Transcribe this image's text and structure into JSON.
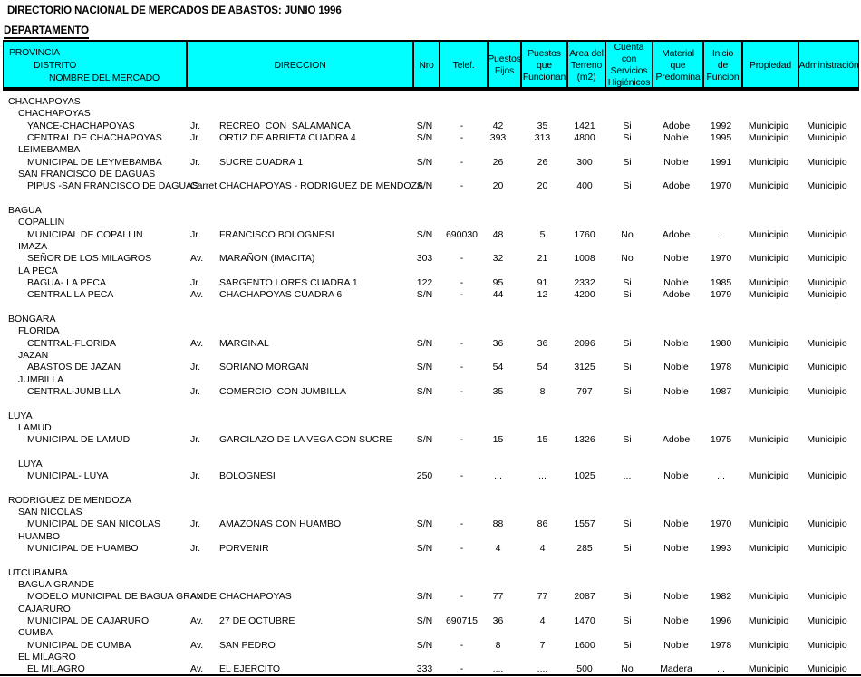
{
  "title": "DIRECTORIO NACIONAL DE MERCADOS DE ABASTOS: JUNIO 1996",
  "department_label": "DEPARTAMENTO",
  "table": {
    "headers": {
      "provincia": "PROVINCIA",
      "distrito": "DISTRITO",
      "nombre_mercado": "NOMBRE DEL MERCADO",
      "direccion": "DIRECCION",
      "nro": "Nro",
      "telef": "Telef.",
      "puestos_fijos": "Puestos\nFijos",
      "puestos_funcionan": "Puestos\nque\nFuncionan",
      "area_terreno": "Area del\nTerreno\n(m2)",
      "servicios": "Cuenta con\nServicios\nHigiénicos",
      "material": "Material\nque\nPredomina",
      "inicio": "Inicio\nde\nFuncion",
      "propiedad": "Propiedad",
      "administracion": "Administración"
    },
    "provinces": [
      {
        "name": "CHACHAPOYAS",
        "gap_after": true,
        "districts": [
          {
            "name": "CHACHAPOYAS",
            "gap_after": false,
            "markets": [
              {
                "nombre": "YANCE-CHACHAPOYAS",
                "via": "Jr.",
                "direccion": "RECREO  CON  SALAMANCA",
                "nro": "S/N",
                "telef": "-",
                "fijos": "42",
                "funcionan": "35",
                "area": "1421",
                "servicios": "Si",
                "material": "Adobe",
                "inicio": "1992",
                "propiedad": "Municipio",
                "administracion": "Municipio"
              },
              {
                "nombre": "CENTRAL DE CHACHAPOYAS",
                "via": "Jr.",
                "direccion": "ORTIZ DE ARRIETA CUADRA 4",
                "nro": "S/N",
                "telef": "-",
                "fijos": "393",
                "funcionan": "313",
                "area": "4800",
                "servicios": "Si",
                "material": "Noble",
                "inicio": "1995",
                "propiedad": "Municipio",
                "administracion": "Municipio"
              }
            ]
          },
          {
            "name": "LEIMEBAMBA",
            "gap_after": false,
            "markets": [
              {
                "nombre": "MUNICIPAL DE LEYMEBAMBA",
                "via": "Jr.",
                "direccion": "SUCRE CUADRA 1",
                "nro": "S/N",
                "telef": "-",
                "fijos": "26",
                "funcionan": "26",
                "area": "300",
                "servicios": "Si",
                "material": "Noble",
                "inicio": "1991",
                "propiedad": "Municipio",
                "administracion": "Municipio"
              }
            ]
          },
          {
            "name": "SAN FRANCISCO DE DAGUAS",
            "gap_after": false,
            "markets": [
              {
                "nombre": "PIPUS -SAN FRANCISCO DE DAGUAS",
                "via": "Carret.",
                "direccion": "CHACHAPOYAS - RODRIGUEZ DE MENDOZA",
                "nro": "S/N",
                "telef": "-",
                "fijos": "20",
                "funcionan": "20",
                "area": "400",
                "servicios": "Si",
                "material": "Adobe",
                "inicio": "1970",
                "propiedad": "Municipio",
                "administracion": "Municipio"
              }
            ]
          }
        ]
      },
      {
        "name": "BAGUA",
        "gap_after": true,
        "districts": [
          {
            "name": "COPALLIN",
            "gap_after": false,
            "markets": [
              {
                "nombre": "MUNICIPAL DE COPALLIN",
                "via": "Jr.",
                "direccion": "FRANCISCO BOLOGNESI",
                "nro": "S/N",
                "telef": "690030",
                "fijos": "48",
                "funcionan": "5",
                "area": "1760",
                "servicios": "No",
                "material": "Adobe",
                "inicio": "...",
                "propiedad": "Municipio",
                "administracion": "Municipio"
              }
            ]
          },
          {
            "name": "IMAZA",
            "gap_after": false,
            "markets": [
              {
                "nombre": "SEÑOR DE LOS MILAGROS",
                "via": "Av.",
                "direccion": "MARAÑON (IMACITA)",
                "nro": "303",
                "telef": "-",
                "fijos": "32",
                "funcionan": "21",
                "area": "1008",
                "servicios": "No",
                "material": "Noble",
                "inicio": "1970",
                "propiedad": "Municipio",
                "administracion": "Municipio"
              }
            ]
          },
          {
            "name": "LA PECA",
            "gap_after": false,
            "markets": [
              {
                "nombre": "BAGUA- LA PECA",
                "via": "Jr.",
                "direccion": "SARGENTO LORES CUADRA 1",
                "nro": "122",
                "telef": "-",
                "fijos": "95",
                "funcionan": "91",
                "area": "2332",
                "servicios": "Si",
                "material": "Noble",
                "inicio": "1985",
                "propiedad": "Municipio",
                "administracion": "Municipio"
              },
              {
                "nombre": "CENTRAL LA PECA",
                "via": "Av.",
                "direccion": "CHACHAPOYAS CUADRA 6",
                "nro": "S/N",
                "telef": "-",
                "fijos": "44",
                "funcionan": "12",
                "area": "4200",
                "servicios": "Si",
                "material": "Adobe",
                "inicio": "1979",
                "propiedad": "Municipio",
                "administracion": "Municipio"
              }
            ]
          }
        ]
      },
      {
        "name": "BONGARA",
        "gap_after": true,
        "districts": [
          {
            "name": "FLORIDA",
            "gap_after": false,
            "markets": [
              {
                "nombre": "CENTRAL-FLORIDA",
                "via": "Av.",
                "direccion": "MARGINAL",
                "nro": "S/N",
                "telef": "-",
                "fijos": "36",
                "funcionan": "36",
                "area": "2096",
                "servicios": "Si",
                "material": "Noble",
                "inicio": "1980",
                "propiedad": "Municipio",
                "administracion": "Municipio"
              }
            ]
          },
          {
            "name": "JAZAN",
            "gap_after": false,
            "markets": [
              {
                "nombre": "ABASTOS DE JAZAN",
                "via": "Jr.",
                "direccion": "SORIANO MORGAN",
                "nro": "S/N",
                "telef": "-",
                "fijos": "54",
                "funcionan": "54",
                "area": "3125",
                "servicios": "Si",
                "material": "Noble",
                "inicio": "1978",
                "propiedad": "Municipio",
                "administracion": "Municipio"
              }
            ]
          },
          {
            "name": "JUMBILLA",
            "gap_after": false,
            "markets": [
              {
                "nombre": "CENTRAL-JUMBILLA",
                "via": "Jr.",
                "direccion": "COMERCIO  CON JUMBILLA",
                "nro": "S/N",
                "telef": "-",
                "fijos": "35",
                "funcionan": "8",
                "area": "797",
                "servicios": "Si",
                "material": "Noble",
                "inicio": "1987",
                "propiedad": "Municipio",
                "administracion": "Municipio"
              }
            ]
          }
        ]
      },
      {
        "name": "LUYA",
        "gap_after": true,
        "districts": [
          {
            "name": "LAMUD",
            "gap_after": true,
            "markets": [
              {
                "nombre": "MUNICIPAL DE LAMUD",
                "via": "Jr.",
                "direccion": "GARCILAZO DE LA VEGA CON SUCRE",
                "nro": "S/N",
                "telef": "-",
                "fijos": "15",
                "funcionan": "15",
                "area": "1326",
                "servicios": "Si",
                "material": "Adobe",
                "inicio": "1975",
                "propiedad": "Municipio",
                "administracion": "Municipio"
              }
            ]
          },
          {
            "name": "LUYA",
            "gap_after": false,
            "markets": [
              {
                "nombre": "MUNICIPAL- LUYA",
                "via": "Jr.",
                "direccion": "BOLOGNESI",
                "nro": "250",
                "telef": "-",
                "fijos": "...",
                "funcionan": "...",
                "area": "1025",
                "servicios": "...",
                "material": "Noble",
                "inicio": "...",
                "propiedad": "Municipio",
                "administracion": "Municipio"
              }
            ]
          }
        ]
      },
      {
        "name": "RODRIGUEZ DE MENDOZA",
        "gap_after": true,
        "districts": [
          {
            "name": "SAN NICOLAS",
            "gap_after": false,
            "markets": [
              {
                "nombre": "MUNICIPAL DE SAN NICOLAS",
                "via": "Jr.",
                "direccion": "AMAZONAS CON HUAMBO",
                "nro": "S/N",
                "telef": "-",
                "fijos": "88",
                "funcionan": "86",
                "area": "1557",
                "servicios": "Si",
                "material": "Noble",
                "inicio": "1970",
                "propiedad": "Municipio",
                "administracion": "Municipio"
              }
            ]
          },
          {
            "name": "HUAMBO",
            "gap_after": false,
            "markets": [
              {
                "nombre": "MUNICIPAL DE HUAMBO",
                "via": "Jr.",
                "direccion": "PORVENIR",
                "nro": "S/N",
                "telef": "-",
                "fijos": "4",
                "funcionan": "4",
                "area": "285",
                "servicios": "Si",
                "material": "Noble",
                "inicio": "1993",
                "propiedad": "Municipio",
                "administracion": "Municipio"
              }
            ]
          }
        ]
      },
      {
        "name": "UTCUBAMBA",
        "gap_after": false,
        "districts": [
          {
            "name": "BAGUA GRANDE",
            "gap_after": false,
            "markets": [
              {
                "nombre": "MODELO MUNICIPAL DE BAGUA GRANDE",
                "via": "Av.",
                "direccion": "CHACHAPOYAS",
                "nro": "S/N",
                "telef": "-",
                "fijos": "77",
                "funcionan": "77",
                "area": "2087",
                "servicios": "Si",
                "material": "Noble",
                "inicio": "1982",
                "propiedad": "Municipio",
                "administracion": "Municipio"
              }
            ]
          },
          {
            "name": "CAJARURO",
            "gap_after": false,
            "markets": [
              {
                "nombre": "MUNICIPAL DE CAJARURO",
                "via": "Av.",
                "direccion": "27 DE OCTUBRE",
                "nro": "S/N",
                "telef": "690715",
                "fijos": "36",
                "funcionan": "4",
                "area": "1470",
                "servicios": "Si",
                "material": "Noble",
                "inicio": "1996",
                "propiedad": "Municipio",
                "administracion": "Municipio"
              }
            ]
          },
          {
            "name": "CUMBA",
            "gap_after": false,
            "markets": [
              {
                "nombre": "MUNICIPAL DE CUMBA",
                "via": "Av.",
                "direccion": "SAN PEDRO",
                "nro": "S/N",
                "telef": "-",
                "fijos": "8",
                "funcionan": "7",
                "area": "1600",
                "servicios": "Si",
                "material": "Noble",
                "inicio": "1978",
                "propiedad": "Municipio",
                "administracion": "Municipio"
              }
            ]
          },
          {
            "name": "EL MILAGRO",
            "gap_after": false,
            "markets": [
              {
                "nombre": "EL MILAGRO",
                "via": "Av.",
                "direccion": "EL EJERCITO",
                "nro": "333",
                "telef": "-",
                "fijos": "....",
                "funcionan": "....",
                "area": "500",
                "servicios": "No",
                "material": "Madera",
                "inicio": "...",
                "propiedad": "Municipio",
                "administracion": "Municipio"
              }
            ]
          }
        ]
      }
    ]
  }
}
